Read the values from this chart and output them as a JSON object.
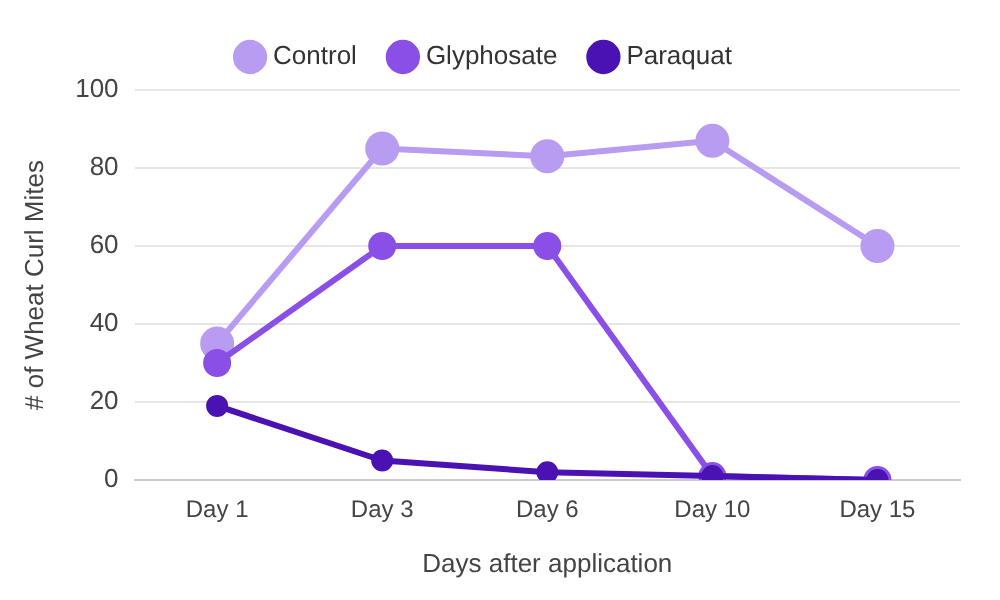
{
  "chart_data": {
    "type": "line",
    "xlabel": "Days after application",
    "ylabel": "# of Wheat Curl Mites",
    "categories": [
      "Day 1",
      "Day 3",
      "Day 6",
      "Day 10",
      "Day 15"
    ],
    "series": [
      {
        "name": "Control",
        "color": "#b79cf2",
        "values": [
          35,
          85,
          83,
          87,
          60
        ]
      },
      {
        "name": "Glyphosate",
        "color": "#8a4fe6",
        "values": [
          30,
          60,
          60,
          1,
          0
        ]
      },
      {
        "name": "Paraquat",
        "color": "#4a12b2",
        "values": [
          19,
          5,
          2,
          1,
          0
        ]
      }
    ],
    "ylim": [
      0,
      100
    ],
    "yticks": [
      0,
      20,
      40,
      60,
      80,
      100
    ],
    "grid": "y",
    "legend": "top",
    "marker": "circle",
    "line_style": "solid"
  }
}
